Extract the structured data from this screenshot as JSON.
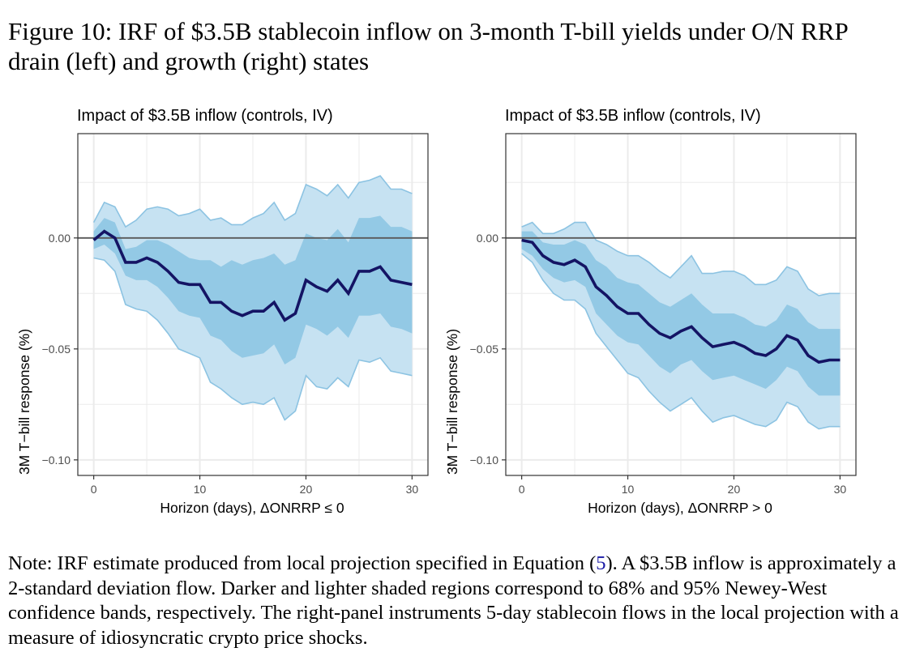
{
  "figure": {
    "caption": "Figure 10: IRF of $3.5B stablecoin inflow on 3-month T-bill yields under O/N RRP drain (left) and growth (right) states",
    "note_prefix": "Note: IRF estimate produced from local projection specified in Equation (",
    "note_ref": "5",
    "note_suffix": "). A $3.5B inflow is approximately a 2-standard deviation flow. Darker and lighter shaded regions correspond to 68% and 95% Newey-West confidence bands, respectively. The right-panel instruments 5-day stablecoin flows in the local projection with a measure of idiosyncratic crypto price shocks."
  },
  "colors": {
    "ci95": "#c6e2f2",
    "ci95_edge": "#8cc3e2",
    "ci68": "#93c9e5",
    "irf_line": "#141464",
    "zero_line": "#595959",
    "grid": "#ebebeb",
    "frame": "#333333"
  },
  "chart_data": [
    {
      "type": "area",
      "title": "Impact of $3.5B inflow (controls, IV)",
      "xlabel": "Horizon (days), ΔONRRP ≤ 0",
      "ylabel": "3M T−bill response (%)",
      "xlim": [
        -1.5,
        31.5
      ],
      "ylim": [
        -0.107,
        0.047
      ],
      "xticks": [
        0,
        10,
        20,
        30
      ],
      "xtick_labels": [
        "0",
        "10",
        "20",
        "30"
      ],
      "yticks": [
        0.0,
        -0.05,
        -0.1
      ],
      "ytick_labels": [
        "0.00",
        "−0.05",
        "−0.10"
      ],
      "grid": true,
      "hline": 0,
      "x": [
        0,
        1,
        2,
        3,
        4,
        5,
        6,
        7,
        8,
        9,
        10,
        11,
        12,
        13,
        14,
        15,
        16,
        17,
        18,
        19,
        20,
        21,
        22,
        23,
        24,
        25,
        26,
        27,
        28,
        29,
        30
      ],
      "series": [
        {
          "name": "IRF",
          "values": [
            -0.001,
            0.003,
            0.0,
            -0.011,
            -0.011,
            -0.009,
            -0.011,
            -0.015,
            -0.02,
            -0.021,
            -0.021,
            -0.029,
            -0.029,
            -0.033,
            -0.035,
            -0.033,
            -0.033,
            -0.029,
            -0.037,
            -0.034,
            -0.019,
            -0.022,
            -0.024,
            -0.019,
            -0.025,
            -0.015,
            -0.015,
            -0.013,
            -0.019,
            -0.02,
            -0.021
          ]
        },
        {
          "name": "68% CI upper",
          "values": [
            0.003,
            0.009,
            0.007,
            -0.005,
            -0.004,
            -0.001,
            -0.001,
            -0.003,
            -0.006,
            -0.009,
            -0.01,
            -0.01,
            -0.013,
            -0.01,
            -0.012,
            -0.01,
            -0.009,
            -0.007,
            -0.012,
            -0.01,
            0.002,
            0.0,
            -0.001,
            0.004,
            -0.002,
            0.009,
            0.009,
            0.01,
            0.005,
            0.005,
            0.003
          ]
        },
        {
          "name": "68% CI lower",
          "values": [
            -0.005,
            -0.003,
            -0.007,
            -0.017,
            -0.019,
            -0.019,
            -0.022,
            -0.027,
            -0.033,
            -0.035,
            -0.036,
            -0.044,
            -0.046,
            -0.051,
            -0.054,
            -0.053,
            -0.052,
            -0.048,
            -0.057,
            -0.054,
            -0.039,
            -0.041,
            -0.044,
            -0.04,
            -0.045,
            -0.035,
            -0.035,
            -0.034,
            -0.04,
            -0.041,
            -0.043
          ]
        },
        {
          "name": "95% CI upper",
          "values": [
            0.007,
            0.016,
            0.014,
            0.005,
            0.008,
            0.013,
            0.014,
            0.013,
            0.01,
            0.011,
            0.013,
            0.008,
            0.009,
            0.006,
            0.006,
            0.009,
            0.011,
            0.016,
            0.008,
            0.011,
            0.024,
            0.022,
            0.019,
            0.024,
            0.018,
            0.025,
            0.026,
            0.028,
            0.022,
            0.022,
            0.02
          ]
        },
        {
          "name": "95% CI lower",
          "values": [
            -0.009,
            -0.01,
            -0.015,
            -0.03,
            -0.032,
            -0.033,
            -0.037,
            -0.043,
            -0.05,
            -0.052,
            -0.054,
            -0.065,
            -0.068,
            -0.072,
            -0.075,
            -0.074,
            -0.075,
            -0.072,
            -0.082,
            -0.078,
            -0.062,
            -0.067,
            -0.068,
            -0.063,
            -0.067,
            -0.055,
            -0.056,
            -0.054,
            -0.06,
            -0.061,
            -0.062
          ]
        }
      ]
    },
    {
      "type": "area",
      "title": "Impact of $3.5B inflow (controls, IV)",
      "xlabel": "Horizon (days), ΔONRRP > 0",
      "ylabel": "3M T−bill response (%)",
      "xlim": [
        -1.5,
        31.5
      ],
      "ylim": [
        -0.107,
        0.047
      ],
      "xticks": [
        0,
        10,
        20,
        30
      ],
      "xtick_labels": [
        "0",
        "10",
        "20",
        "30"
      ],
      "yticks": [
        0.0,
        -0.05,
        -0.1
      ],
      "ytick_labels": [
        "0.00",
        "−0.05",
        "−0.10"
      ],
      "grid": true,
      "hline": 0,
      "x": [
        0,
        1,
        2,
        3,
        4,
        5,
        6,
        7,
        8,
        9,
        10,
        11,
        12,
        13,
        14,
        15,
        16,
        17,
        18,
        19,
        20,
        21,
        22,
        23,
        24,
        25,
        26,
        27,
        28,
        29,
        30
      ],
      "series": [
        {
          "name": "IRF",
          "values": [
            -0.001,
            -0.002,
            -0.008,
            -0.011,
            -0.012,
            -0.01,
            -0.013,
            -0.022,
            -0.026,
            -0.031,
            -0.034,
            -0.034,
            -0.039,
            -0.043,
            -0.045,
            -0.042,
            -0.04,
            -0.045,
            -0.049,
            -0.048,
            -0.047,
            -0.049,
            -0.052,
            -0.053,
            -0.05,
            -0.044,
            -0.046,
            -0.053,
            -0.056,
            -0.055,
            -0.055
          ]
        },
        {
          "name": "68% CI upper",
          "values": [
            0.003,
            0.003,
            -0.002,
            -0.003,
            -0.003,
            -0.001,
            -0.003,
            -0.01,
            -0.013,
            -0.018,
            -0.02,
            -0.021,
            -0.025,
            -0.029,
            -0.031,
            -0.028,
            -0.025,
            -0.03,
            -0.034,
            -0.034,
            -0.034,
            -0.036,
            -0.039,
            -0.04,
            -0.037,
            -0.03,
            -0.032,
            -0.038,
            -0.041,
            -0.041,
            -0.041
          ]
        },
        {
          "name": "68% CI lower",
          "values": [
            -0.005,
            -0.008,
            -0.014,
            -0.018,
            -0.02,
            -0.019,
            -0.022,
            -0.034,
            -0.039,
            -0.044,
            -0.047,
            -0.048,
            -0.053,
            -0.058,
            -0.061,
            -0.057,
            -0.055,
            -0.06,
            -0.064,
            -0.063,
            -0.062,
            -0.064,
            -0.066,
            -0.068,
            -0.064,
            -0.058,
            -0.06,
            -0.067,
            -0.071,
            -0.071,
            -0.071
          ]
        },
        {
          "name": "95% CI upper",
          "values": [
            0.005,
            0.007,
            0.002,
            0.002,
            0.004,
            0.007,
            0.007,
            -0.001,
            -0.003,
            -0.006,
            -0.008,
            -0.008,
            -0.011,
            -0.015,
            -0.018,
            -0.013,
            -0.008,
            -0.016,
            -0.016,
            -0.015,
            -0.015,
            -0.017,
            -0.021,
            -0.021,
            -0.019,
            -0.013,
            -0.015,
            -0.023,
            -0.026,
            -0.025,
            -0.025
          ]
        },
        {
          "name": "95% CI lower",
          "values": [
            -0.007,
            -0.011,
            -0.019,
            -0.025,
            -0.028,
            -0.028,
            -0.032,
            -0.043,
            -0.049,
            -0.055,
            -0.061,
            -0.063,
            -0.069,
            -0.074,
            -0.078,
            -0.075,
            -0.072,
            -0.078,
            -0.083,
            -0.081,
            -0.08,
            -0.082,
            -0.084,
            -0.085,
            -0.082,
            -0.074,
            -0.076,
            -0.083,
            -0.086,
            -0.085,
            -0.085
          ]
        }
      ]
    }
  ]
}
